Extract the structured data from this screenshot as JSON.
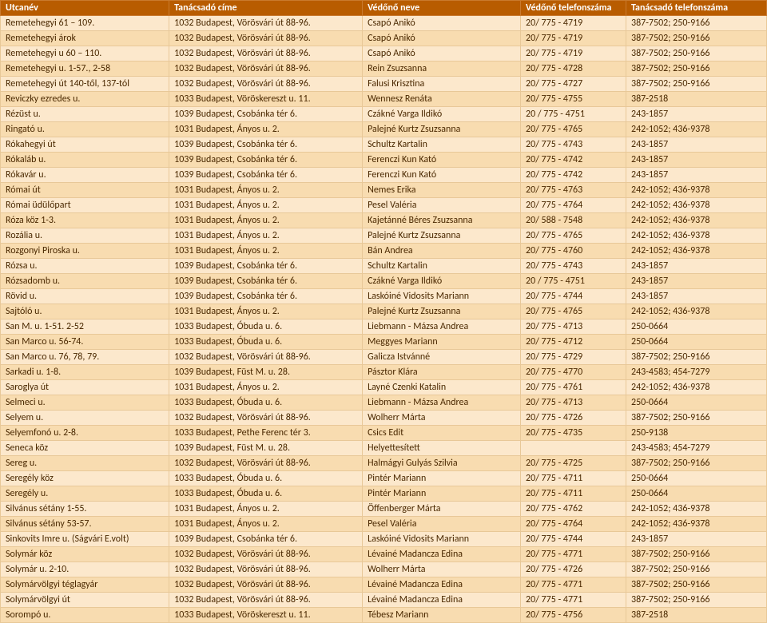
{
  "table": {
    "columns": [
      "Utcanév",
      "Tanácsadó címe",
      "Védőnő neve",
      "Védőnő telefonszáma",
      "Tanácsadó telefonszáma"
    ],
    "rows": [
      [
        "Remetehegyi  61 – 109.",
        "1032 Budapest, Vörösvári út 88-96.",
        "Csapó Anikó",
        "20/ 775 - 4719",
        "387-7502; 250-9166"
      ],
      [
        "Remetehegyi árok",
        "1032 Budapest, Vörösvári út 88-96.",
        "Csapó Anikó",
        "20/ 775 - 4719",
        "387-7502; 250-9166"
      ],
      [
        "Remetehegyi u 60 – 110.",
        "1032 Budapest, Vörösvári út 88-96.",
        "Csapó Anikó",
        "20/ 775 - 4719",
        "387-7502; 250-9166"
      ],
      [
        "Remetehegyi u. 1-57., 2-58",
        "1032 Budapest, Vörösvári út 88-96.",
        "Rein Zsuzsanna",
        "20/ 775 - 4728",
        "387-7502; 250-9166"
      ],
      [
        "Remetehegyi út 140-től, 137-tól",
        "1032 Budapest, Vörösvári út 88-96.",
        "Falusi Krisztina",
        "20/ 775 - 4727",
        "387-7502; 250-9166"
      ],
      [
        "Reviczky ezredes u.",
        "1033 Budapest, Vöröskereszt u. 11.",
        "Wennesz Renáta",
        "20/ 775 - 4755",
        "387-2518"
      ],
      [
        "Rézüst u.",
        "1039 Budapest, Csobánka tér 6.",
        "Czákné Varga Ildikó",
        "20 / 775 - 4751",
        "243-1857"
      ],
      [
        "Ringató u.",
        "1031 Budapest, Ányos u. 2.",
        "Palejné Kurtz Zsuzsanna",
        "20/ 775 - 4765",
        "242-1052; 436-9378"
      ],
      [
        "Rókahegyi út",
        "1039 Budapest, Csobánka tér 6.",
        "Schultz Kartalin",
        "20/ 775 - 4743",
        "243-1857"
      ],
      [
        "Rókaláb u.",
        "1039 Budapest, Csobánka tér 6.",
        "Ferenczi Kun Kató",
        "20/ 775 - 4742",
        "243-1857"
      ],
      [
        "Rókavár u.",
        "1039 Budapest, Csobánka tér 6.",
        "Ferenczi Kun Kató",
        "20/ 775 - 4742",
        "243-1857"
      ],
      [
        "Római út",
        "1031 Budapest, Ányos u. 2.",
        "Nemes Erika",
        "20/ 775 - 4763",
        "242-1052; 436-9378"
      ],
      [
        "Római üdülőpart",
        "1031 Budapest, Ányos u. 2.",
        "Pesel Valéria",
        "20/ 775 - 4764",
        "242-1052; 436-9378"
      ],
      [
        "Róza köz 1-3.",
        "1031 Budapest, Ányos u. 2.",
        "Kajetánné Béres Zsuzsanna",
        "20/ 588 - 7548",
        "242-1052; 436-9378"
      ],
      [
        "Rozália u.",
        "1031 Budapest, Ányos u. 2.",
        "Palejné Kurtz Zsuzsanna",
        "20/ 775 - 4765",
        "242-1052; 436-9378"
      ],
      [
        "Rozgonyi Piroska u.",
        "1031 Budapest, Ányos u. 2.",
        "Bán Andrea",
        "20/ 775 - 4760",
        "242-1052; 436-9378"
      ],
      [
        "Rózsa u.",
        "1039 Budapest, Csobánka tér 6.",
        "Schultz Kartalin",
        "20/ 775 - 4743",
        "243-1857"
      ],
      [
        "Rózsadomb u.",
        "1039 Budapest, Csobánka tér 6.",
        "Czákné Varga Ildikó",
        "20 / 775 - 4751",
        "243-1857"
      ],
      [
        "Rövid u.",
        "1039 Budapest, Csobánka tér 6.",
        " Laskóiné Vidosits Mariann",
        "20/ 775 - 4744",
        "243-1857"
      ],
      [
        "Sajtóló u.",
        "1031 Budapest, Ányos u. 2.",
        "Palejné Kurtz Zsuzsanna",
        "20/ 775 - 4765",
        "242-1052; 436-9378"
      ],
      [
        "San M. u. 1-51. 2-52",
        "1033 Budapest, Óbuda u. 6.",
        "Liebmann - Mázsa Andrea",
        "20/ 775 - 4713",
        "250-0664"
      ],
      [
        "San Marco u. 56-74.",
        "1033 Budapest, Óbuda u. 6.",
        "Meggyes Mariann",
        "20/ 775 - 4712",
        "250-0664"
      ],
      [
        "San Marco u. 76, 78, 79.",
        "1032 Budapest, Vörösvári út 88-96.",
        "Galicza Istvánné",
        "20/ 775 - 4729",
        "387-7502; 250-9166"
      ],
      [
        "Sarkadi u. 1-8.",
        "1039 Budapest, Füst M. u. 28.",
        "Pásztor Klára",
        "20/ 775 - 4770",
        "243-4583; 454-7279"
      ],
      [
        "Saroglya út",
        "1031 Budapest, Ányos u. 2.",
        "Layné Czenki Katalin",
        "20/ 775 - 4761",
        "242-1052; 436-9378"
      ],
      [
        "Selmeci u.",
        "1033 Budapest, Óbuda u. 6.",
        "Liebmann - Mázsa Andrea",
        "20/ 775 - 4713",
        "250-0664"
      ],
      [
        "Selyem u.",
        "1032 Budapest, Vörösvári út 88-96.",
        "Wolherr Márta",
        "20/ 775 - 4726",
        "387-7502; 250-9166"
      ],
      [
        "Selyemfonó u. 2-8.",
        "1033 Budapest, Pethe Ferenc tér 3.",
        "Csics Edit",
        "20/ 775 - 4735",
        "250-9138"
      ],
      [
        "Seneca köz",
        "1039 Budapest, Füst M. u. 28.",
        "Helyettesített",
        "",
        "243-4583; 454-7279"
      ],
      [
        "Sereg u.",
        "1032 Budapest, Vörösvári út 88-96.",
        "Halmágyi Gulyás Szilvia",
        "20/ 775 - 4725",
        "387-7502; 250-9166"
      ],
      [
        "Seregély köz",
        "1033 Budapest, Óbuda u. 6.",
        "Pintér Mariann",
        "20/ 775 - 4711",
        "250-0664"
      ],
      [
        "Seregély u.",
        "1033 Budapest, Óbuda u. 6.",
        "Pintér Mariann",
        "20/ 775 - 4711",
        "250-0664"
      ],
      [
        "Silvánus sétány 1-55.",
        "1031 Budapest, Ányos u. 2.",
        "Öffenberger Márta",
        "20/ 775 - 4762",
        "242-1052; 436-9378"
      ],
      [
        "Silvánus sétány 53-57.",
        "1031 Budapest, Ányos u. 2.",
        "Pesel Valéria",
        "20/ 775 - 4764",
        "242-1052; 436-9378"
      ],
      [
        "Sinkovits Imre u.  (Ságvári E.volt)",
        "1039 Budapest, Csobánka tér 6.",
        " Laskóiné Vidosits Mariann",
        "20/ 775 - 4744",
        "243-1857"
      ],
      [
        "Solymár köz",
        "1032 Budapest, Vörösvári út 88-96.",
        "Lévainé Madancza Edina",
        "20/ 775 - 4771",
        "387-7502; 250-9166"
      ],
      [
        "Solymár u. 2-10.",
        "1032 Budapest, Vörösvári út 88-96.",
        "Wolherr Márta",
        "20/ 775 - 4726",
        "387-7502; 250-9166"
      ],
      [
        "Solymárvölgyi téglagyár",
        "1032 Budapest, Vörösvári út 88-96.",
        "Lévainé Madancza Edina",
        "20/ 775 - 4771",
        "387-7502; 250-9166"
      ],
      [
        "Solymárvölgyi út",
        "1032 Budapest, Vörösvári út 88-96.",
        "Lévainé Madancza Edina",
        "20/ 775 - 4771",
        "387-7502; 250-9166"
      ],
      [
        "Sorompó u.",
        "1033 Budapest, Vöröskereszt u. 11.",
        "Tébesz Mariann",
        "20/ 775 - 4756",
        "387-2518"
      ]
    ],
    "header_bg": "#b85c00",
    "header_fg": "#ffffff",
    "row_odd_bg": "#fce8cc",
    "row_even_bg": "#f8dcb0",
    "text_color": "#4a2800",
    "border_color": "#e8c898",
    "fontsize": 12
  }
}
